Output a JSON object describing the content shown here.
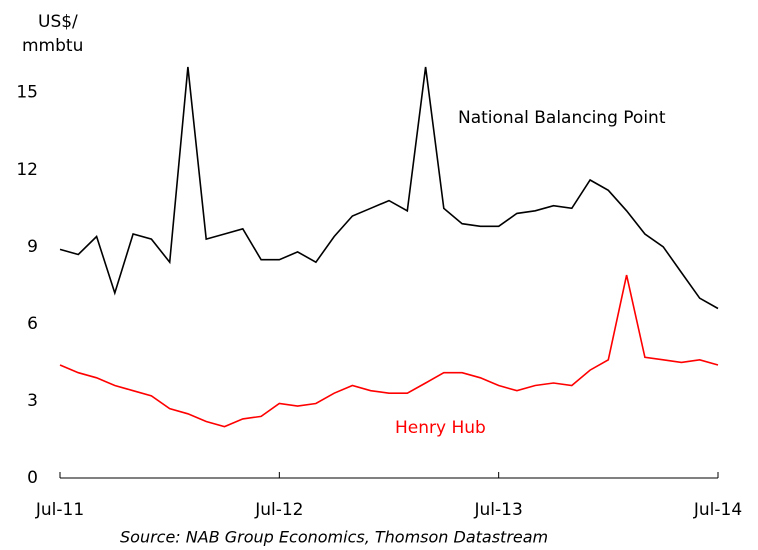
{
  "chart_data": {
    "type": "line",
    "ylabel": [
      "US$/",
      "mmbtu"
    ],
    "source": "Source: NAB Group Economics, Thomson Datastream",
    "x": [
      "Jul-11",
      "Aug-11",
      "Sep-11",
      "Oct-11",
      "Nov-11",
      "Dec-11",
      "Jan-12",
      "Feb-12",
      "Mar-12",
      "Apr-12",
      "May-12",
      "Jun-12",
      "Jul-12",
      "Aug-12",
      "Sep-12",
      "Oct-12",
      "Nov-12",
      "Dec-12",
      "Jan-13",
      "Feb-13",
      "Mar-13",
      "Apr-13",
      "May-13",
      "Jun-13",
      "Jul-13",
      "Aug-13",
      "Sep-13",
      "Oct-13",
      "Nov-13",
      "Dec-13",
      "Jan-14",
      "Feb-14",
      "Mar-14",
      "Apr-14",
      "May-14",
      "Jun-14",
      "Jul-14"
    ],
    "xtick_index": [
      0,
      12,
      24,
      36
    ],
    "series": [
      {
        "name": "National Balancing Point",
        "color": "#000000",
        "values": [
          8.9,
          8.7,
          9.4,
          7.2,
          9.5,
          9.3,
          8.4,
          16.0,
          9.3,
          9.5,
          9.7,
          8.5,
          8.5,
          8.8,
          8.4,
          9.4,
          10.2,
          10.5,
          10.8,
          10.4,
          16.0,
          10.5,
          9.9,
          9.8,
          9.8,
          10.3,
          10.4,
          10.6,
          10.5,
          11.6,
          11.2,
          10.4,
          9.5,
          9.0,
          8.0,
          7.0,
          6.6
        ]
      },
      {
        "name": "Henry Hub",
        "color": "#ff0000",
        "values": [
          4.4,
          4.1,
          3.9,
          3.6,
          3.4,
          3.2,
          2.7,
          2.5,
          2.2,
          2.0,
          2.3,
          2.4,
          2.9,
          2.8,
          2.9,
          3.3,
          3.6,
          3.4,
          3.3,
          3.3,
          3.7,
          4.1,
          4.1,
          3.9,
          3.6,
          3.4,
          3.6,
          3.7,
          3.6,
          4.2,
          4.6,
          7.9,
          4.7,
          4.6,
          4.5,
          4.6,
          4.4
        ]
      }
    ],
    "ylim": [
      0,
      16
    ],
    "yticks": [
      0,
      3,
      6,
      9,
      12,
      15
    ]
  }
}
